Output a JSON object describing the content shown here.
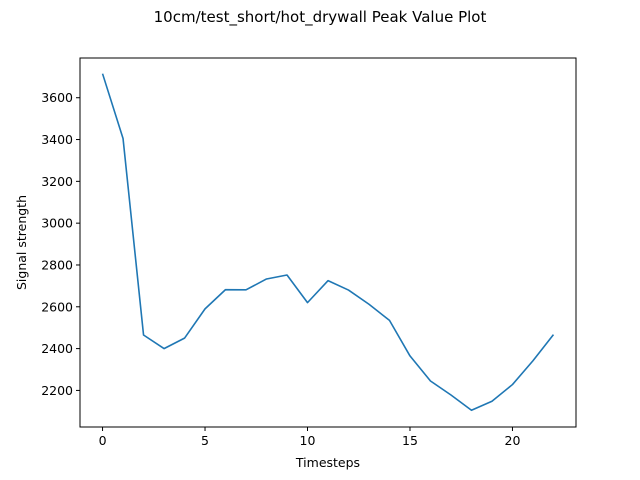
{
  "chart_data": {
    "type": "line",
    "title": "10cm/test_short/hot_drywall Peak Value Plot",
    "xlabel": "Timesteps",
    "ylabel": "Signal strength",
    "xlim": [
      -1.1,
      23.1
    ],
    "ylim": [
      2025,
      3790
    ],
    "xticks": [
      0,
      5,
      10,
      15,
      20
    ],
    "yticks": [
      2200,
      2400,
      2600,
      2800,
      3000,
      3200,
      3400,
      3600
    ],
    "grid": false,
    "legend": "none",
    "series": [
      {
        "color": "#1f77b4",
        "x": [
          0,
          1,
          2,
          3,
          4,
          5,
          6,
          7,
          8,
          9,
          10,
          11,
          12,
          13,
          14,
          15,
          16,
          17,
          18,
          19,
          20,
          21,
          22
        ],
        "values": [
          3715,
          3405,
          2465,
          2400,
          2450,
          2590,
          2682,
          2681,
          2733,
          2752,
          2620,
          2725,
          2680,
          2612,
          2535,
          2365,
          2245,
          2178,
          2105,
          2148,
          2228,
          2342,
          2467
        ]
      }
    ]
  }
}
